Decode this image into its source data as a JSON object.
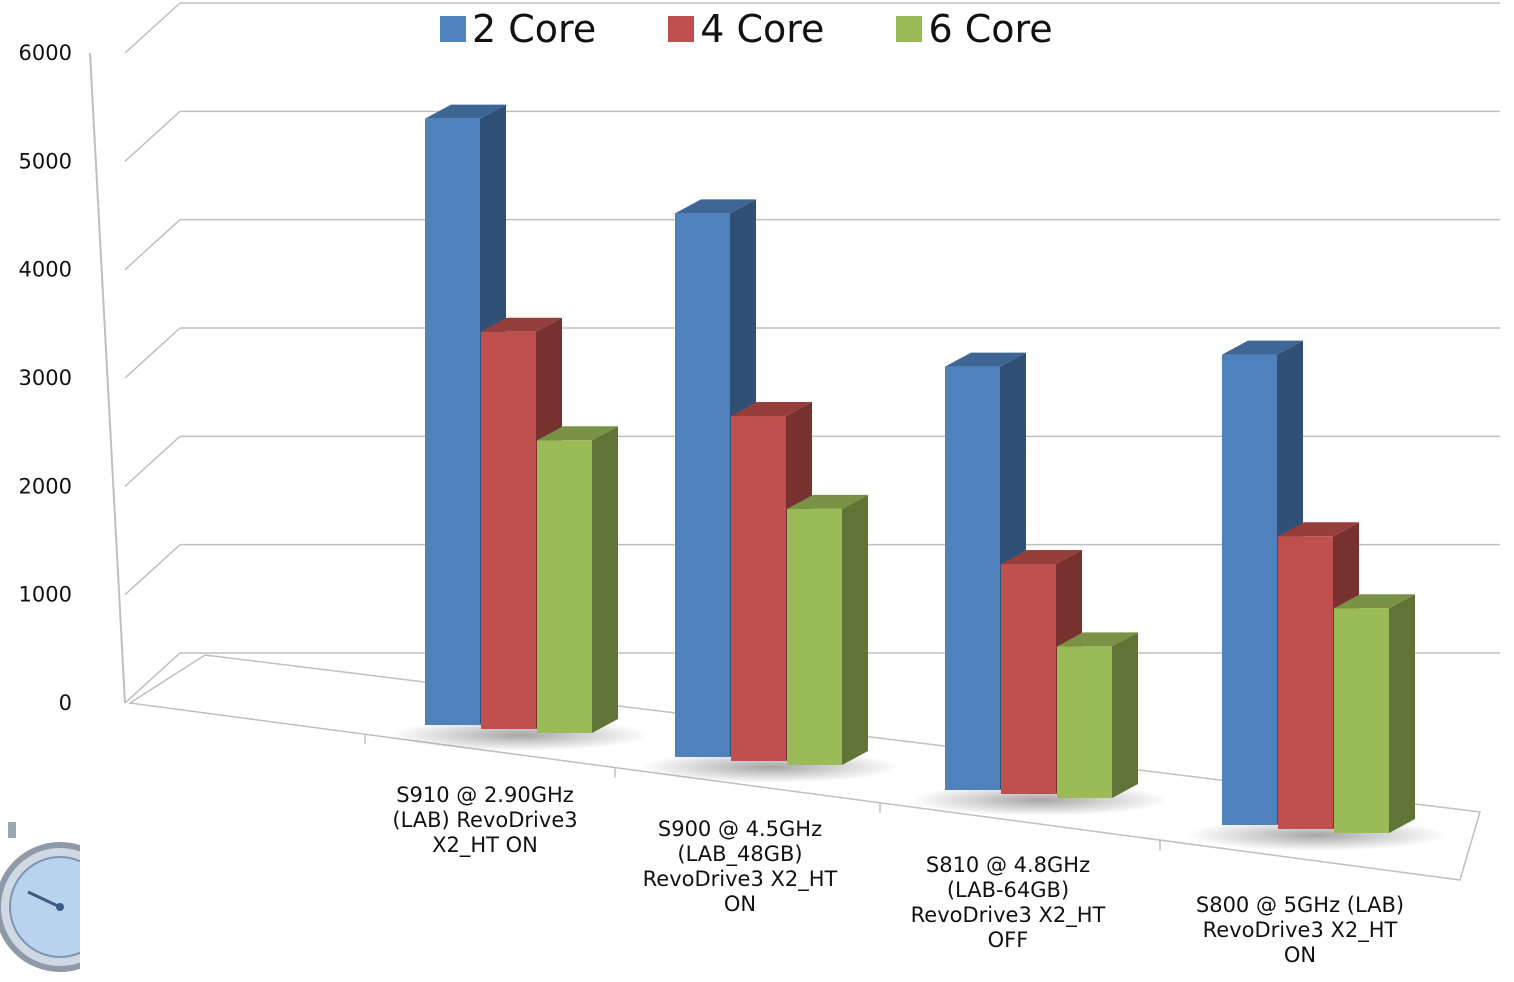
{
  "chart_data": {
    "type": "bar",
    "title": "",
    "xlabel": "",
    "ylabel": "",
    "ylim": [
      0,
      6000
    ],
    "yticks": [
      0,
      1000,
      2000,
      3000,
      4000,
      5000,
      6000
    ],
    "grid": true,
    "legend_position": "top",
    "categories": [
      "S910 @ 2.90GHz (LAB) RevoDrive3 X2_HT ON",
      "S900 @ 4.5GHz (LAB_48GB) RevoDrive3 X2_HT ON",
      "S810 @ 4.8GHz (LAB-64GB) RevoDrive3 X2_HT OFF",
      "S800 @ 5GHz (LAB) RevoDrive3 X2_HT ON"
    ],
    "series": [
      {
        "name": "2 Core",
        "color": "#4F81BD",
        "values": [
          5800,
          5200,
          4050,
          4500
        ]
      },
      {
        "name": "4 Core",
        "color": "#C0504D",
        "values": [
          3800,
          3300,
          2200,
          2800
        ]
      },
      {
        "name": "6 Core",
        "color": "#9BBB59",
        "values": [
          2800,
          2450,
          1450,
          2150
        ]
      }
    ]
  },
  "decor": {
    "clock_icon": "stopwatch-icon"
  }
}
